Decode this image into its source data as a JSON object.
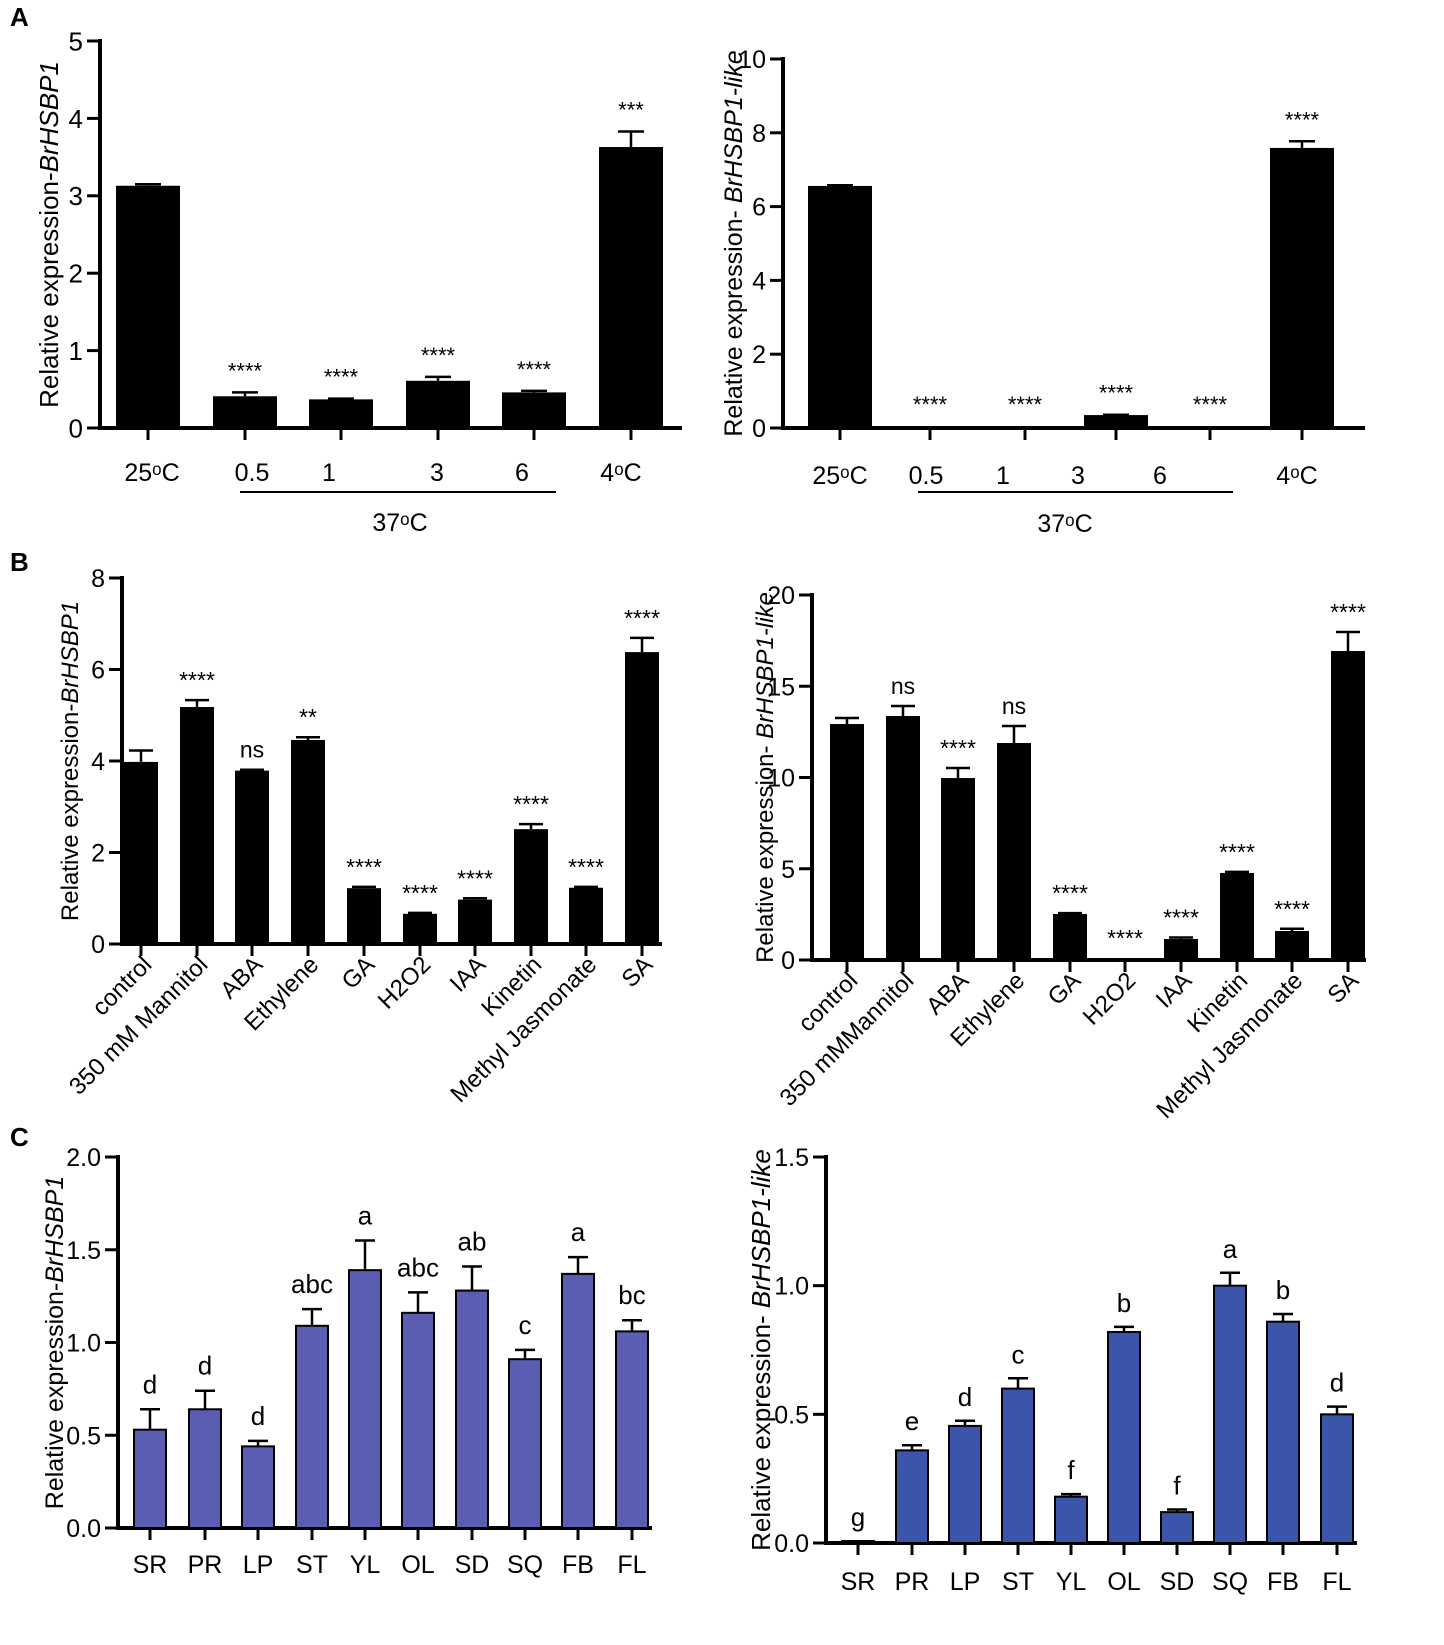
{
  "panel_labels": {
    "a": "A",
    "b": "B",
    "c": "C"
  },
  "chart_data": [
    {
      "type": "bar",
      "ylabel": {
        "prefix": "Relative expression-",
        "gene": "BrHSBP1"
      },
      "ylim": [
        0,
        5
      ],
      "yticks": [
        0,
        1,
        2,
        3,
        4,
        5
      ],
      "ytick_labels": [
        "0",
        "1",
        "2",
        "3",
        "4",
        "5"
      ],
      "categories": [
        "25ᵒC",
        "0.5",
        "1",
        "3",
        "6",
        "4ᵒC"
      ],
      "values": [
        3.13,
        0.41,
        0.37,
        0.61,
        0.46,
        3.63
      ],
      "errors": [
        0.02,
        0.05,
        0.01,
        0.05,
        0.02,
        0.2
      ],
      "annotations": [
        "",
        "****",
        "****",
        "****",
        "****",
        "***"
      ],
      "group": {
        "label": "37ᵒC",
        "from": 1,
        "to": 4
      },
      "bar_color": "#000000"
    },
    {
      "type": "bar",
      "ylabel": {
        "prefix": "Relative expression- ",
        "gene": "BrHSBP1-like"
      },
      "ylim": [
        0,
        10
      ],
      "yticks": [
        0,
        2,
        4,
        6,
        8,
        10
      ],
      "ytick_labels": [
        "0",
        "2",
        "4",
        "6",
        "8",
        "10"
      ],
      "categories": [
        "25ᵒC",
        "0.5",
        "1",
        "3",
        "6",
        "4ᵒC"
      ],
      "values": [
        6.56,
        0.02,
        0.01,
        0.35,
        0.01,
        7.59
      ],
      "errors": [
        0.02,
        0,
        0,
        0.01,
        0,
        0.18
      ],
      "annotations": [
        "",
        "****",
        "****",
        "****",
        "****",
        "****"
      ],
      "group": {
        "label": "37ᵒC",
        "from": 1,
        "to": 4
      },
      "bar_color": "#000000"
    },
    {
      "type": "bar",
      "ylabel": {
        "prefix": "Relative expression-",
        "gene": "BrHSBP1"
      },
      "ylim": [
        0,
        8
      ],
      "yticks": [
        0,
        2,
        4,
        6,
        8
      ],
      "ytick_labels": [
        "0",
        "2",
        "4",
        "6",
        "8"
      ],
      "categories": [
        "control",
        "350 mM Mannitol",
        "ABA",
        "Ethylene",
        "GA",
        "H2O2",
        "IAA",
        "Kinetin",
        "Methyl Jasmonate",
        "SA"
      ],
      "values": [
        3.98,
        5.18,
        3.79,
        4.46,
        1.22,
        0.66,
        0.97,
        2.51,
        1.23,
        6.38
      ],
      "errors": [
        0.25,
        0.15,
        0.02,
        0.06,
        0.03,
        0.02,
        0.03,
        0.11,
        0.02,
        0.31
      ],
      "annotations": [
        "",
        "****",
        "ns",
        "**",
        "****",
        "****",
        "****",
        "****",
        "****",
        "****"
      ],
      "bar_color": "#000000"
    },
    {
      "type": "bar",
      "ylabel": {
        "prefix": "Relative expression- ",
        "gene": "BrHSBP1-like"
      },
      "ylim": [
        0,
        20
      ],
      "yticks": [
        0,
        5,
        10,
        15,
        20
      ],
      "ytick_labels": [
        "0",
        "5",
        "10",
        "15",
        "20"
      ],
      "categories": [
        "control",
        "350 mMMannitol",
        "ABA",
        "Ethylene",
        "GA",
        "H2O2",
        "IAA",
        "Kinetin",
        "Methyl Jasmonate",
        "SA"
      ],
      "values": [
        12.93,
        13.37,
        9.97,
        11.89,
        2.52,
        0.05,
        1.15,
        4.77,
        1.59,
        16.93
      ],
      "errors": [
        0.33,
        0.55,
        0.55,
        0.93,
        0.05,
        0,
        0.08,
        0.06,
        0.12,
        1.04
      ],
      "annotations": [
        "",
        "ns",
        "****",
        "ns",
        "****",
        "****",
        "****",
        "****",
        "****",
        "****"
      ],
      "bar_color": "#000000"
    },
    {
      "type": "bar",
      "ylabel": {
        "prefix": "Relative expression-",
        "gene": "BrHSBP1"
      },
      "ylim": [
        0,
        2
      ],
      "yticks": [
        0,
        0.5,
        1,
        1.5,
        2
      ],
      "ytick_labels": [
        "0.0",
        "0.5",
        "1.0",
        "1.5",
        "2.0"
      ],
      "categories": [
        "SR",
        "PR",
        "LP",
        "ST",
        "YL",
        "OL",
        "SD",
        "SQ",
        "FB",
        "FL"
      ],
      "values": [
        0.53,
        0.64,
        0.44,
        1.09,
        1.39,
        1.16,
        1.28,
        0.91,
        1.37,
        1.06
      ],
      "errors": [
        0.11,
        0.1,
        0.03,
        0.09,
        0.16,
        0.11,
        0.13,
        0.05,
        0.09,
        0.06
      ],
      "annotations": [
        "d",
        "d",
        "d",
        "abc",
        "a",
        "abc",
        "ab",
        "c",
        "a",
        "bc"
      ],
      "bar_color": "#5a5db2"
    },
    {
      "type": "bar",
      "ylabel": {
        "prefix": "Relative expression- ",
        "gene": "BrHSBP1-like"
      },
      "ylim": [
        0,
        1.5
      ],
      "yticks": [
        0,
        0.5,
        1,
        1.5
      ],
      "ytick_labels": [
        "0.0",
        "0.5",
        "1.0",
        "1.5"
      ],
      "categories": [
        "SR",
        "PR",
        "LP",
        "ST",
        "YL",
        "OL",
        "SD",
        "SQ",
        "FB",
        "FL"
      ],
      "values": [
        0.005,
        0.36,
        0.455,
        0.6,
        0.18,
        0.82,
        0.12,
        1.0,
        0.86,
        0.5
      ],
      "errors": [
        0,
        0.02,
        0.02,
        0.04,
        0.01,
        0.02,
        0.01,
        0.05,
        0.03,
        0.03
      ],
      "annotations": [
        "g",
        "e",
        "d",
        "c",
        "f",
        "b",
        "f",
        "a",
        "b",
        "d"
      ],
      "bar_color": "#3b55ab"
    }
  ]
}
